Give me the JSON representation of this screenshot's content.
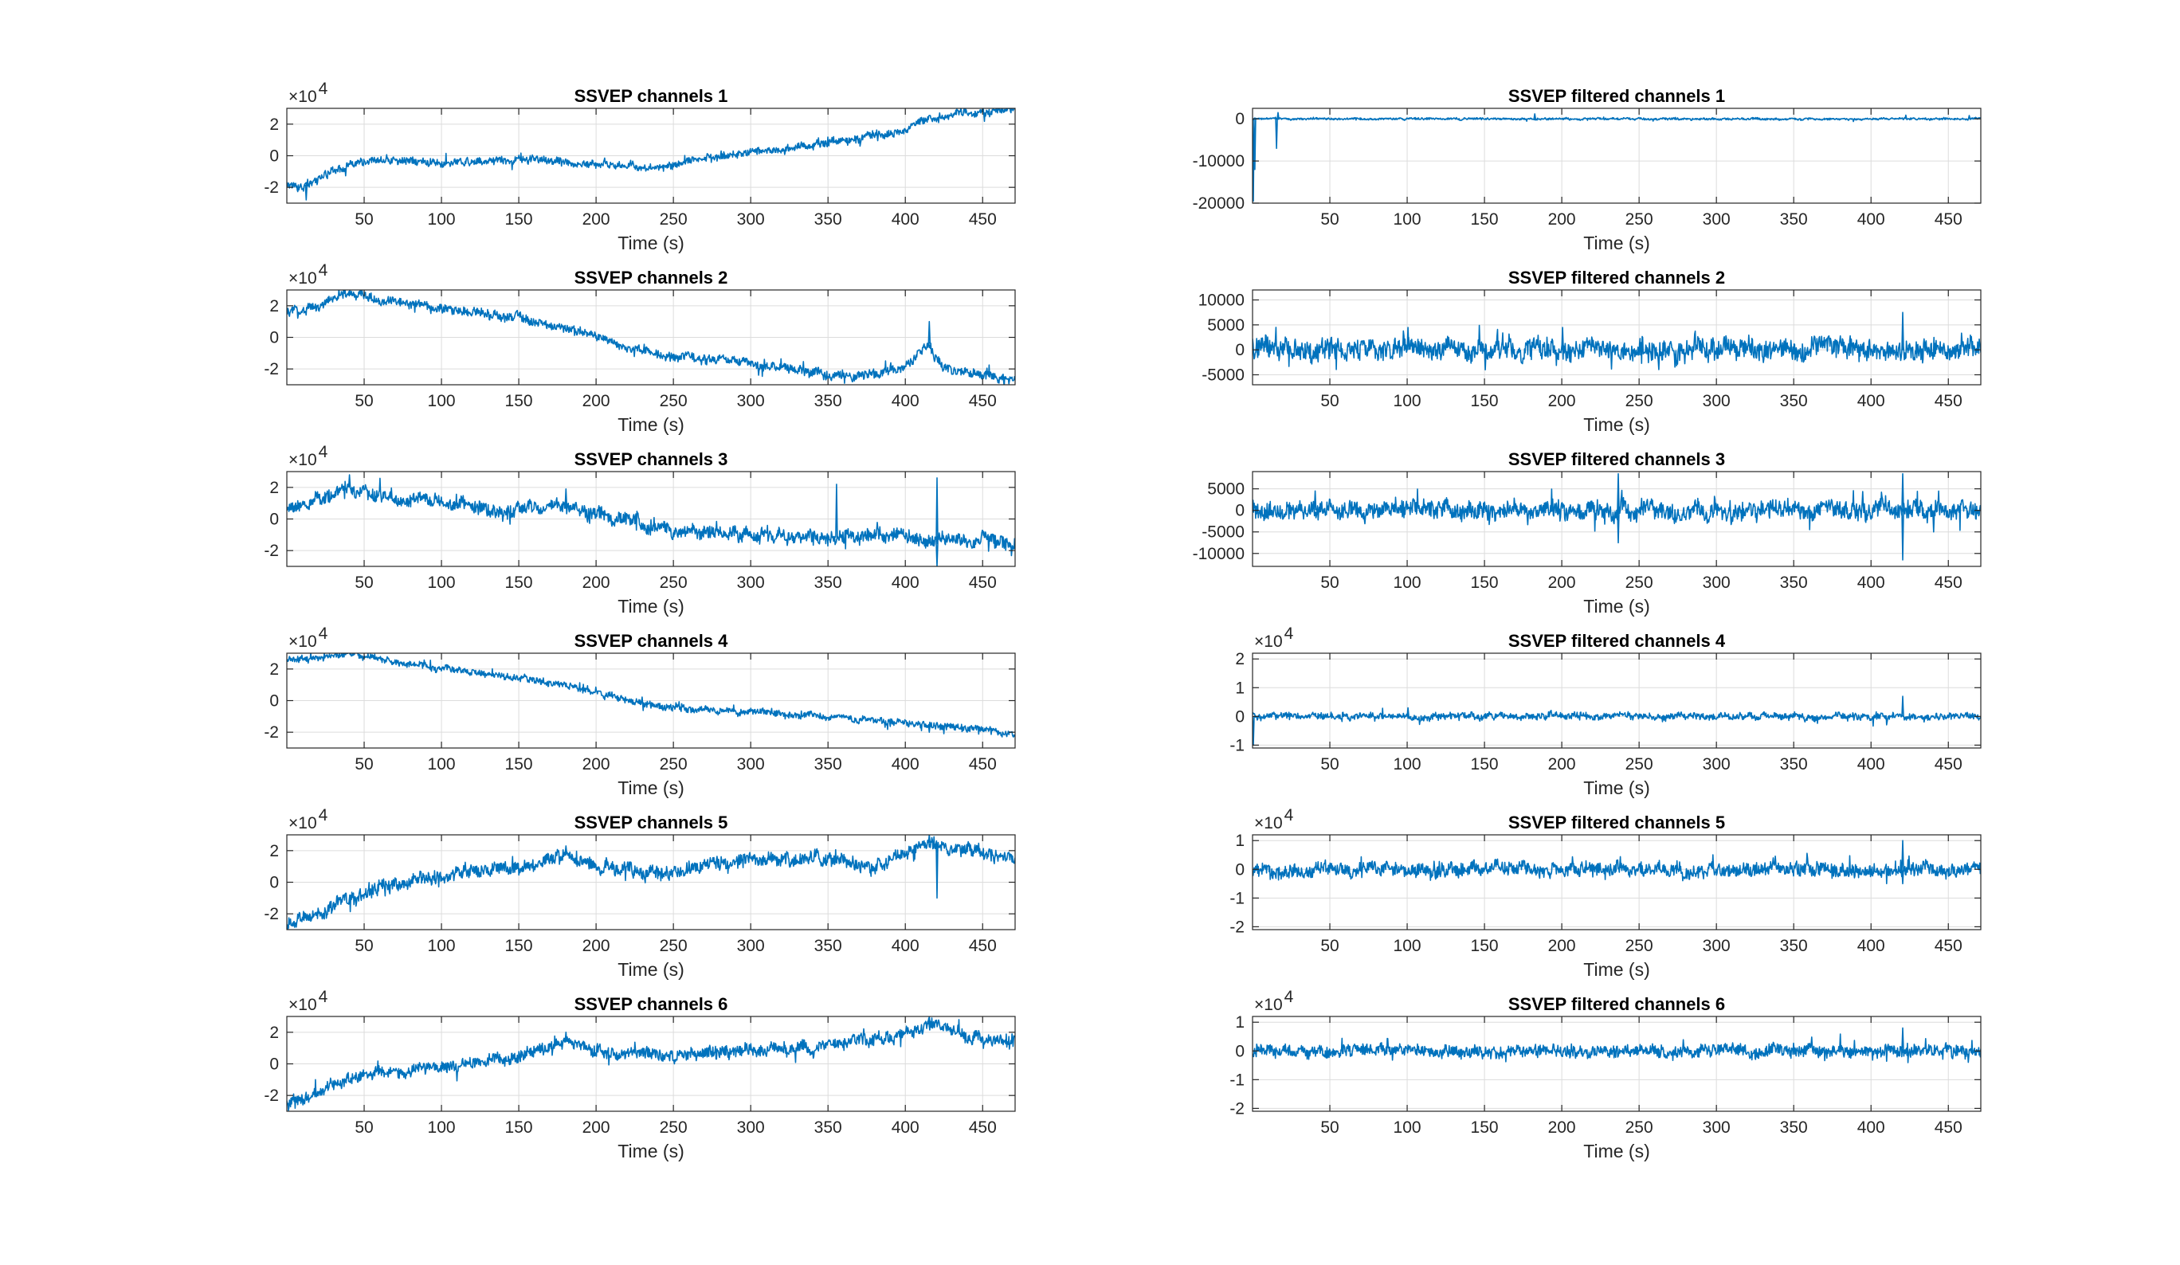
{
  "figure": {
    "background": "#ffffff",
    "line_color": "#0072BD"
  },
  "chart_data": [
    {
      "type": "line",
      "title": "SSVEP channels 1",
      "xlabel": "Time (s)",
      "ylabel": "",
      "xlim": [
        0,
        471
      ],
      "ylim": [
        -3,
        3
      ],
      "y_exponent_label": "×10",
      "y_exponent_power": "4",
      "xticks": [
        50,
        100,
        150,
        200,
        250,
        300,
        350,
        400,
        450
      ],
      "yticks": [
        -2,
        0,
        2
      ],
      "grid": true,
      "series": [
        {
          "noise": 0.25,
          "spikes": [
            [
              12,
              -2.8
            ]
          ],
          "x": [
            0,
            10,
            20,
            30,
            50,
            70,
            100,
            150,
            200,
            240,
            260,
            300,
            350,
            380,
            400,
            410,
            430,
            450,
            471
          ],
          "values": [
            -1.8,
            -1.9,
            -1.6,
            -0.9,
            -0.4,
            -0.3,
            -0.4,
            -0.2,
            -0.5,
            -0.8,
            -0.3,
            0.2,
            0.8,
            1.2,
            1.6,
            2.2,
            2.6,
            2.8,
            3.0
          ]
        }
      ]
    },
    {
      "type": "line",
      "title": "SSVEP filtered channels 1",
      "xlabel": "Time (s)",
      "ylabel": "",
      "xlim": [
        0,
        471
      ],
      "ylim": [
        -20000,
        2500
      ],
      "xticks": [
        50,
        100,
        150,
        200,
        250,
        300,
        350,
        400,
        450
      ],
      "yticks": [
        -20000,
        -10000,
        0
      ],
      "grid": true,
      "series": [
        {
          "noise": 250,
          "spikes": [
            [
              0,
              -19500
            ],
            [
              1,
              -12000
            ],
            [
              15,
              -7000
            ],
            [
              16,
              1500
            ],
            [
              182,
              1200
            ],
            [
              422,
              900
            ],
            [
              463,
              800
            ]
          ],
          "x": [
            0,
            471
          ],
          "values": [
            0,
            0
          ]
        }
      ]
    },
    {
      "type": "line",
      "title": "SSVEP channels 2",
      "xlabel": "Time (s)",
      "ylabel": "",
      "xlim": [
        0,
        471
      ],
      "ylim": [
        -3,
        3
      ],
      "y_exponent_label": "×10",
      "y_exponent_power": "4",
      "xticks": [
        50,
        100,
        150,
        200,
        250,
        300,
        350,
        400,
        450
      ],
      "yticks": [
        -2,
        0,
        2
      ],
      "grid": true,
      "series": [
        {
          "noise": 0.3,
          "spikes": [
            [
              415,
              1.0
            ]
          ],
          "x": [
            0,
            20,
            40,
            60,
            100,
            150,
            180,
            200,
            220,
            250,
            300,
            350,
            380,
            400,
            415,
            425,
            450,
            471
          ],
          "values": [
            1.5,
            2.0,
            2.8,
            2.4,
            1.8,
            1.2,
            0.6,
            0,
            -0.6,
            -1.2,
            -1.6,
            -2.4,
            -2.4,
            -1.8,
            -0.4,
            -2.0,
            -2.4,
            -2.7
          ]
        }
      ]
    },
    {
      "type": "line",
      "title": "SSVEP filtered channels 2",
      "xlabel": "Time (s)",
      "ylabel": "",
      "xlim": [
        0,
        471
      ],
      "ylim": [
        -7000,
        12000
      ],
      "xticks": [
        50,
        100,
        150,
        200,
        250,
        300,
        350,
        400,
        450
      ],
      "yticks": [
        -5000,
        0,
        5000,
        10000
      ],
      "grid": true,
      "series": [
        {
          "noise": 2200,
          "spikes": [
            [
              100,
              4500
            ],
            [
              150,
              -4000
            ],
            [
              200,
              4500
            ],
            [
              420,
              7500
            ]
          ],
          "x": [
            0,
            471
          ],
          "values": [
            0,
            0
          ]
        }
      ]
    },
    {
      "type": "line",
      "title": "SSVEP channels 3",
      "xlabel": "Time (s)",
      "ylabel": "",
      "xlim": [
        0,
        471
      ],
      "ylim": [
        -3,
        3
      ],
      "y_exponent_label": "×10",
      "y_exponent_power": "4",
      "xticks": [
        50,
        100,
        150,
        200,
        250,
        300,
        350,
        400,
        450
      ],
      "yticks": [
        -2,
        0,
        2
      ],
      "grid": true,
      "series": [
        {
          "noise": 0.45,
          "spikes": [
            [
              40,
              2.8
            ],
            [
              180,
              1.9
            ],
            [
              355,
              2.2
            ],
            [
              420,
              2.6
            ],
            [
              420,
              -3.0
            ]
          ],
          "x": [
            0,
            20,
            40,
            60,
            100,
            150,
            180,
            200,
            230,
            250,
            300,
            350,
            400,
            420,
            450,
            471
          ],
          "values": [
            0.5,
            1.2,
            2.0,
            1.5,
            1.0,
            0.5,
            0.8,
            0.3,
            -0.4,
            -0.8,
            -1.0,
            -1.2,
            -1.0,
            -1.5,
            -1.2,
            -1.6
          ]
        }
      ]
    },
    {
      "type": "line",
      "title": "SSVEP filtered channels 3",
      "xlabel": "Time (s)",
      "ylabel": "",
      "xlim": [
        0,
        471
      ],
      "ylim": [
        -13000,
        9000
      ],
      "xticks": [
        50,
        100,
        150,
        200,
        250,
        300,
        350,
        400,
        450
      ],
      "yticks": [
        -10000,
        -5000,
        0,
        5000
      ],
      "grid": true,
      "series": [
        {
          "noise": 2200,
          "spikes": [
            [
              40,
              4500
            ],
            [
              236,
              8500
            ],
            [
              236,
              -7500
            ],
            [
              420,
              8500
            ],
            [
              420,
              -11500
            ],
            [
              440,
              -5000
            ]
          ],
          "x": [
            0,
            471
          ],
          "values": [
            0,
            0
          ]
        }
      ]
    },
    {
      "type": "line",
      "title": "SSVEP channels 4",
      "xlabel": "Time (s)",
      "ylabel": "",
      "xlim": [
        0,
        471
      ],
      "ylim": [
        -3,
        3
      ],
      "y_exponent_label": "×10",
      "y_exponent_power": "4",
      "xticks": [
        50,
        100,
        150,
        200,
        250,
        300,
        350,
        400,
        450
      ],
      "yticks": [
        -2,
        0,
        2
      ],
      "grid": true,
      "series": [
        {
          "noise": 0.22,
          "spikes": [
            [
              415,
              -2.0
            ]
          ],
          "x": [
            0,
            20,
            40,
            60,
            100,
            150,
            180,
            200,
            220,
            250,
            300,
            350,
            400,
            420,
            450,
            471
          ],
          "values": [
            2.5,
            2.7,
            3.0,
            2.6,
            2.0,
            1.5,
            1.0,
            0.5,
            0,
            -0.5,
            -0.7,
            -1.0,
            -1.4,
            -1.6,
            -1.8,
            -2.1
          ]
        }
      ]
    },
    {
      "type": "line",
      "title": "SSVEP filtered channels 4",
      "xlabel": "Time (s)",
      "ylabel": "",
      "xlim": [
        0,
        471
      ],
      "ylim": [
        -1.1,
        2.2
      ],
      "y_exponent_label": "×10",
      "y_exponent_power": "4",
      "xticks": [
        50,
        100,
        150,
        200,
        250,
        300,
        350,
        400,
        450
      ],
      "yticks": [
        -1,
        0,
        1,
        2
      ],
      "grid": true,
      "series": [
        {
          "noise": 0.12,
          "spikes": [
            [
              0,
              -1.0
            ],
            [
              100,
              0.3
            ],
            [
              420,
              0.7
            ]
          ],
          "x": [
            0,
            471
          ],
          "values": [
            0,
            0
          ]
        }
      ]
    },
    {
      "type": "line",
      "title": "SSVEP channels 5",
      "xlabel": "Time (s)",
      "ylabel": "",
      "xlim": [
        0,
        471
      ],
      "ylim": [
        -3,
        3
      ],
      "y_exponent_label": "×10",
      "y_exponent_power": "4",
      "xticks": [
        50,
        100,
        150,
        200,
        250,
        300,
        350,
        400,
        450
      ],
      "yticks": [
        -2,
        0,
        2
      ],
      "grid": true,
      "series": [
        {
          "noise": 0.45,
          "spikes": [
            [
              180,
              2.3
            ],
            [
              415,
              3.0
            ],
            [
              420,
              -1.0
            ]
          ],
          "x": [
            0,
            20,
            40,
            60,
            100,
            150,
            180,
            200,
            240,
            300,
            350,
            380,
            400,
            415,
            450,
            471
          ],
          "values": [
            -2.5,
            -1.8,
            -1.0,
            -0.4,
            0.5,
            0.9,
            1.8,
            1.0,
            0.5,
            1.5,
            1.5,
            1.0,
            1.8,
            2.5,
            1.7,
            1.8
          ]
        }
      ]
    },
    {
      "type": "line",
      "title": "SSVEP filtered channels 5",
      "xlabel": "Time (s)",
      "ylabel": "",
      "xlim": [
        0,
        471
      ],
      "ylim": [
        -2.1,
        1.2
      ],
      "y_exponent_label": "×10",
      "y_exponent_power": "4",
      "xticks": [
        50,
        100,
        150,
        200,
        250,
        300,
        350,
        400,
        450
      ],
      "yticks": [
        -2,
        -1,
        0,
        1
      ],
      "grid": true,
      "series": [
        {
          "noise": 0.25,
          "spikes": [
            [
              420,
              1.0
            ],
            [
              420,
              -0.5
            ]
          ],
          "x": [
            0,
            471
          ],
          "values": [
            0,
            0
          ]
        }
      ]
    },
    {
      "type": "line",
      "title": "SSVEP channels 6",
      "xlabel": "Time (s)",
      "ylabel": "",
      "xlim": [
        0,
        471
      ],
      "ylim": [
        -3,
        3
      ],
      "y_exponent_label": "×10",
      "y_exponent_power": "4",
      "xticks": [
        50,
        100,
        150,
        200,
        250,
        300,
        350,
        400,
        450
      ],
      "yticks": [
        -2,
        0,
        2
      ],
      "grid": true,
      "series": [
        {
          "noise": 0.4,
          "spikes": [
            [
              180,
              2.0
            ],
            [
              415,
              3.0
            ]
          ],
          "x": [
            0,
            20,
            40,
            60,
            100,
            150,
            180,
            200,
            250,
            300,
            350,
            400,
            415,
            450,
            471
          ],
          "values": [
            -2.5,
            -1.8,
            -0.9,
            -0.6,
            -0.2,
            0.5,
            1.4,
            0.8,
            0.5,
            0.9,
            1.2,
            1.8,
            2.5,
            1.5,
            1.6
          ]
        }
      ]
    },
    {
      "type": "line",
      "title": "SSVEP filtered channels 6",
      "xlabel": "Time (s)",
      "ylabel": "",
      "xlim": [
        0,
        471
      ],
      "ylim": [
        -2.1,
        1.2
      ],
      "y_exponent_label": "×10",
      "y_exponent_power": "4",
      "xticks": [
        50,
        100,
        150,
        200,
        250,
        300,
        350,
        400,
        450
      ],
      "yticks": [
        -2,
        -1,
        0,
        1
      ],
      "grid": true,
      "series": [
        {
          "noise": 0.22,
          "spikes": [
            [
              420,
              0.8
            ]
          ],
          "x": [
            0,
            471
          ],
          "values": [
            0,
            0
          ]
        }
      ]
    }
  ]
}
